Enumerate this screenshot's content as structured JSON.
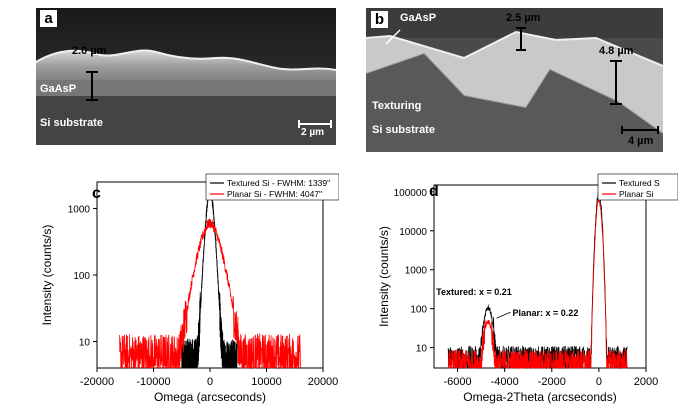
{
  "figure": {
    "panel_a": {
      "letter": "a",
      "thickness_label": "2.0 µm",
      "layer_label": "GaAsP",
      "substrate_label": "Si substrate",
      "scale_label": "2 µm"
    },
    "panel_b": {
      "letter": "b",
      "layer_label": "GaAsP",
      "top_thickness_label": "2.5 µm",
      "side_thickness_label": "4.8 µm",
      "texturing_label": "Texturing",
      "substrate_label": "Si substrate",
      "scale_label": "4 µm"
    }
  },
  "chart_data": [
    {
      "id": "c",
      "type": "line",
      "panel_letter": "c",
      "xlabel": "Omega (arcseconds)",
      "ylabel": "Intensity (counts/s)",
      "xlim": [
        -20000,
        20000
      ],
      "ylim": [
        4,
        2500
      ],
      "yscale": "log",
      "xticks": [
        -20000,
        -10000,
        0,
        10000,
        20000
      ],
      "xtick_labels": [
        "-20000",
        "-10000",
        "0",
        "10000",
        "20000"
      ],
      "yticks": [
        10,
        100,
        1000
      ],
      "ytick_labels": [
        "10",
        "100",
        "1000"
      ],
      "legend": [
        "Textured Si - FWHM: 1339\"",
        "Planar Si - FWHM: 4047\""
      ],
      "series": [
        {
          "name": "Textured Si - FWHM: 1339\"",
          "color": "#000000",
          "peak": 2000,
          "fwhm": 1339,
          "x_range": [
            -5000,
            4800
          ],
          "noise_floor": 5
        },
        {
          "name": "Planar Si - FWHM: 4047\"",
          "color": "#ff0000",
          "peak": 600,
          "fwhm": 4047,
          "x_range": [
            -16000,
            16000
          ],
          "noise_floor": 6
        }
      ]
    },
    {
      "id": "d",
      "type": "line",
      "panel_letter": "d",
      "xlabel": "Omega-2Theta (arcseconds)",
      "ylabel": "Intensity (counts/s)",
      "xlim": [
        -7000,
        2000
      ],
      "ylim": [
        3,
        150000
      ],
      "yscale": "log",
      "xticks": [
        -6000,
        -4000,
        -2000,
        0,
        2000
      ],
      "xtick_labels": [
        "-6000",
        "-4000",
        "-2000",
        "0",
        "2000"
      ],
      "yticks": [
        10,
        100,
        1000,
        10000,
        100000
      ],
      "ytick_labels": [
        "10",
        "100",
        "1000",
        "10000",
        "100000"
      ],
      "legend": [
        "Textured S",
        "Planar Si"
      ],
      "annotations": [
        {
          "text": "Textured: x = 0.21",
          "x": -4700,
          "y": 110
        },
        {
          "text": "Planar: x = 0.22",
          "x": -4600,
          "y": 45
        }
      ],
      "series": [
        {
          "name": "Textured S",
          "color": "#000000",
          "si_peak_x": 0,
          "si_peak_y": 90000,
          "layer_peak_x": -4700,
          "layer_peak_y": 110,
          "x_range": [
            -6400,
            1200
          ],
          "noise_floor": 5
        },
        {
          "name": "Planar Si",
          "color": "#ff0000",
          "si_peak_x": 0,
          "si_peak_y": 60000,
          "layer_peak_x": -4700,
          "layer_peak_y": 45,
          "x_range": [
            -6400,
            1200
          ],
          "noise_floor": 4
        }
      ]
    }
  ],
  "colors": {
    "textured": "#000000",
    "planar": "#ff0000"
  }
}
